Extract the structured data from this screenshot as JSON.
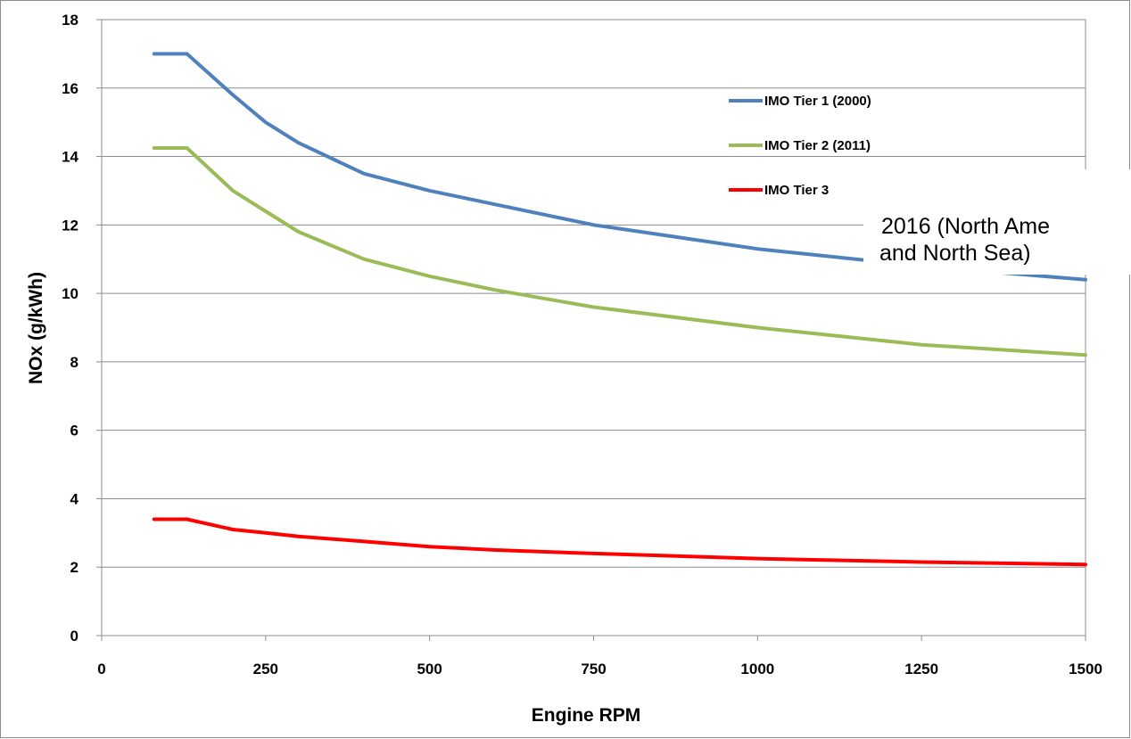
{
  "chart_data": {
    "type": "line",
    "title": "",
    "xlabel": "Engine RPM",
    "ylabel": "NOx (g/kWh)",
    "xlim": [
      0,
      1500
    ],
    "ylim": [
      0,
      18
    ],
    "xticks": [
      0,
      250,
      500,
      750,
      1000,
      1250,
      1500
    ],
    "yticks": [
      0,
      2,
      4,
      6,
      8,
      10,
      12,
      14,
      16,
      18
    ],
    "grid": "horizontal",
    "legend_position": "top-right",
    "series": [
      {
        "name": "IMO Tier 1 (2000)",
        "color": "#4f81bd",
        "x": [
          80,
          130,
          200,
          250,
          300,
          400,
          500,
          600,
          750,
          1000,
          1250,
          1500
        ],
        "y": [
          17.0,
          17.0,
          15.8,
          15.0,
          14.4,
          13.5,
          13.0,
          12.6,
          12.0,
          11.3,
          10.8,
          10.4
        ]
      },
      {
        "name": "IMO Tier 2 (2011)",
        "color": "#9bbb59",
        "x": [
          80,
          130,
          200,
          250,
          300,
          400,
          500,
          600,
          750,
          1000,
          1250,
          1500
        ],
        "y": [
          14.25,
          14.25,
          13.0,
          12.4,
          11.8,
          11.0,
          10.5,
          10.1,
          9.6,
          9.0,
          8.5,
          8.2
        ]
      },
      {
        "name": "IMO Tier 3",
        "color": "#ff0000",
        "x": [
          80,
          130,
          200,
          250,
          300,
          400,
          500,
          600,
          750,
          1000,
          1250,
          1500
        ],
        "y": [
          3.4,
          3.4,
          3.1,
          3.0,
          2.9,
          2.75,
          2.6,
          2.5,
          2.4,
          2.25,
          2.15,
          2.08
        ]
      }
    ],
    "annotation": {
      "line1": " 2016 (North Ame",
      "line2": "and North Sea)"
    }
  }
}
